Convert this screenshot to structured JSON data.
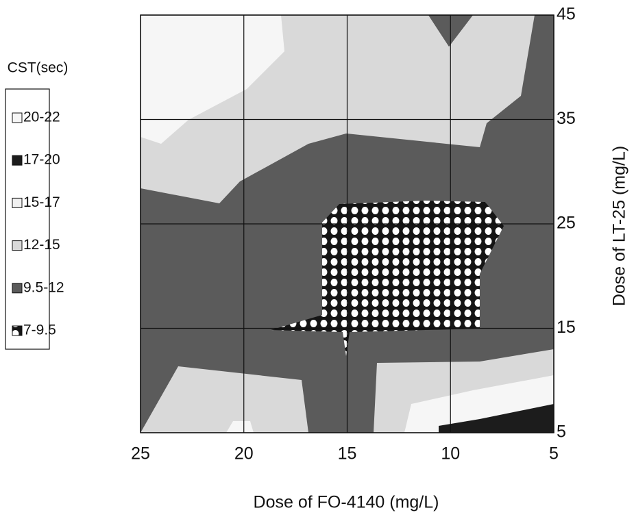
{
  "chart_data": {
    "type": "contour",
    "x_label": "Dose of  FO-4140 (mg/L)",
    "y_label": "Dose of LT-25  (mg/L)",
    "legend_title": "CST(sec)",
    "xlim": [
      25,
      5
    ],
    "xticks": [
      25,
      20,
      15,
      10,
      5
    ],
    "ylim": [
      5,
      45
    ],
    "yticks": [
      5,
      15,
      25,
      35,
      45
    ],
    "grid": true,
    "series": [
      {
        "name": "20-22",
        "color": "#f6f6f6"
      },
      {
        "name": "17-20",
        "color": "#1c1c1c"
      },
      {
        "name": "15-17",
        "color": "#f1f1f1"
      },
      {
        "name": "12-15",
        "color": "#d9d9d9"
      },
      {
        "name": "9.5-12",
        "color": "#5b5b5b"
      },
      {
        "name": "7-9.5",
        "color": "#151515",
        "pattern": "dots"
      }
    ]
  }
}
